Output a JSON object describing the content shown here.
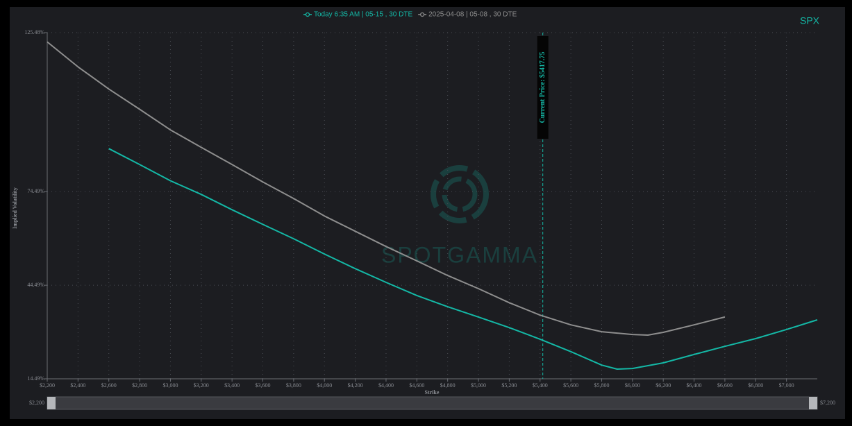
{
  "chart_data": {
    "type": "line",
    "title": "SPX",
    "x_label": "Strike",
    "y_label": "Implied Volatility",
    "watermark": "SPOTGAMMA",
    "grid": true,
    "legend": "top",
    "xlim": [
      2200,
      7200
    ],
    "ylim": [
      14.49,
      125.48
    ],
    "xticks": [
      {
        "value": 2200,
        "label": "$2,200"
      },
      {
        "value": 2400,
        "label": "$2,400"
      },
      {
        "value": 2600,
        "label": "$2,600"
      },
      {
        "value": 2800,
        "label": "$2,800"
      },
      {
        "value": 3000,
        "label": "$3,000"
      },
      {
        "value": 3200,
        "label": "$3,200"
      },
      {
        "value": 3400,
        "label": "$3,400"
      },
      {
        "value": 3600,
        "label": "$3,600"
      },
      {
        "value": 3800,
        "label": "$3,800"
      },
      {
        "value": 4000,
        "label": "$4,000"
      },
      {
        "value": 4200,
        "label": "$4,200"
      },
      {
        "value": 4400,
        "label": "$4,400"
      },
      {
        "value": 4600,
        "label": "$4,600"
      },
      {
        "value": 4800,
        "label": "$4,800"
      },
      {
        "value": 5000,
        "label": "$5,000"
      },
      {
        "value": 5200,
        "label": "$5,200"
      },
      {
        "value": 5400,
        "label": "$5,400"
      },
      {
        "value": 5600,
        "label": "$5,600"
      },
      {
        "value": 5800,
        "label": "$5,800"
      },
      {
        "value": 6000,
        "label": "$6,000"
      },
      {
        "value": 6200,
        "label": "$6,200"
      },
      {
        "value": 6400,
        "label": "$6,400"
      },
      {
        "value": 6600,
        "label": "$6,600"
      },
      {
        "value": 6800,
        "label": "$6,800"
      },
      {
        "value": 7000,
        "label": "$7,000"
      }
    ],
    "yticks": [
      {
        "value": 14.49,
        "label": "14.49%"
      },
      {
        "value": 44.49,
        "label": "44.49%"
      },
      {
        "value": 74.49,
        "label": "74.49%"
      },
      {
        "value": 125.48,
        "label": "125.48%"
      }
    ],
    "current_price": {
      "value": 5417.75,
      "label": "Current Price: $5417.75"
    },
    "range_slider": {
      "start": "$2,200",
      "end": "$7,200"
    },
    "series": [
      {
        "name": "Today 6:35 AM | 05-15 , 30 DTE",
        "color": "#14b8a6",
        "x": [
          2600,
          2800,
          3000,
          3200,
          3400,
          3600,
          3800,
          4000,
          4200,
          4400,
          4600,
          4800,
          5000,
          5200,
          5400,
          5600,
          5800,
          5900,
          6000,
          6200,
          6400,
          6600,
          6800,
          7000,
          7200
        ],
        "values": [
          88.3,
          83.2,
          78.0,
          73.6,
          68.7,
          64.0,
          59.4,
          54.5,
          49.8,
          45.4,
          41.2,
          37.6,
          34.3,
          30.9,
          27.2,
          23.2,
          18.9,
          17.6,
          17.8,
          19.6,
          22.3,
          24.9,
          27.4,
          30.3,
          33.4
        ]
      },
      {
        "name": "2025-04-08 | 05-08 , 30 DTE",
        "color": "#8e8e8e",
        "x": [
          2200,
          2400,
          2600,
          2800,
          3000,
          3200,
          3400,
          3600,
          3800,
          4000,
          4200,
          4400,
          4600,
          4800,
          5000,
          5200,
          5400,
          5600,
          5800,
          6000,
          6100,
          6200,
          6400,
          6600
        ],
        "values": [
          122.5,
          114.5,
          107.4,
          100.9,
          94.3,
          88.7,
          83.2,
          77.6,
          72.3,
          66.7,
          61.8,
          56.9,
          52.3,
          47.6,
          43.4,
          38.9,
          34.9,
          31.8,
          29.6,
          28.7,
          28.5,
          29.4,
          31.8,
          34.3
        ]
      }
    ]
  }
}
